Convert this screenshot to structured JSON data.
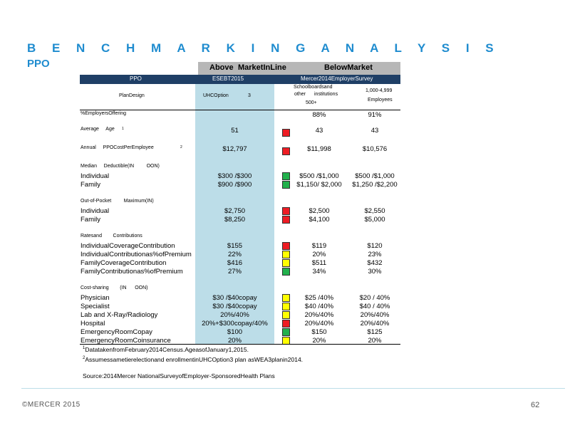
{
  "title": "B E N C H M A R K I N G   A N A L Y S I S",
  "subtitle": "PPO",
  "market_bar": {
    "above": "Above",
    "in_line": "MarketInLine",
    "below": "BelowMarket"
  },
  "table": {
    "header": {
      "col0": "PPO",
      "col1": "ESEBT2015",
      "col2": "Mercer2014EmployerSurvey"
    },
    "subheader": {
      "plan_design": "PlanDesign",
      "uhc": "UHCOption",
      "uhc_num": "3",
      "schools_1": "Schoolboardsand",
      "schools_2": "other",
      "schools_3": "institutions",
      "schools_4": "500+",
      "employers_1": "1,000-4,999",
      "employers_2": "Employees"
    },
    "rows": [
      {
        "label": "%EmployersOffering",
        "v1": "",
        "flag": "",
        "v2": "88%",
        "v3": "91%",
        "small": true
      },
      {
        "label": "Average     Age",
        "sup": "1",
        "v1": "51",
        "flag": "red",
        "v2": "43",
        "v3": "43",
        "small": true
      },
      {
        "label": "Annual     PPOCostPerEmployee",
        "sup": "2",
        "v1": "$12,797",
        "flag": "red",
        "v2": "$11,998",
        "v3": "$10,576",
        "small": true
      },
      {
        "label": "Median     Deductible(IN         OON)",
        "v1": "",
        "flag": "",
        "v2": "",
        "v3": "",
        "small": true
      },
      {
        "label": "Individual",
        "v1": "$300 /$300",
        "flag": "green",
        "v2": "$500 /$1,000",
        "v3": "$500 /$1,000"
      },
      {
        "label": "Family",
        "v1": "$900 /$900",
        "flag": "green",
        "v2": "$1,150/ $2,000",
        "v3": "$1,250 /$2,200"
      },
      {
        "label": "Out-of-Pocket         Maximum(IN)",
        "v1": "",
        "flag": "",
        "v2": "",
        "v3": "",
        "small": true
      },
      {
        "label": "Individual",
        "v1": "$2,750",
        "flag": "red",
        "v2": "$2,500",
        "v3": "$2,550"
      },
      {
        "label": "Family",
        "v1": "$8,250",
        "flag": "red",
        "v2": "$4,100",
        "v3": "$5,000"
      },
      {
        "label": "Ratesand        Contributions",
        "v1": "",
        "flag": "",
        "v2": "",
        "v3": "",
        "small": true
      },
      {
        "label": "IndividualCoverageContribution",
        "v1": "$155",
        "flag": "red",
        "v2": "$119",
        "v3": "$120"
      },
      {
        "label": "IndividualContributionas%ofPremium",
        "v1": "22%",
        "flag": "yellow",
        "v2": "20%",
        "v3": "23%"
      },
      {
        "label": "FamilyCoverageContribution",
        "v1": "$416",
        "flag": "yellow",
        "v2": "$511",
        "v3": "$432"
      },
      {
        "label": "FamilyContributionas%ofPremium",
        "v1": "27%",
        "flag": "green",
        "v2": "34%",
        "v3": "30%"
      },
      {
        "label": "Cost-sharing        (IN      OON)",
        "v1": "",
        "flag": "",
        "v2": "",
        "v3": "",
        "small": true
      },
      {
        "label": "Physician",
        "v1": "$30 /$40copay",
        "flag": "yellow",
        "v2": "$25 /40%",
        "v3": "$20 / 40%"
      },
      {
        "label": "Specialist",
        "v1": "$30 /$40copay",
        "flag": "yellow",
        "v2": "$40 /40%",
        "v3": "$40 / 40%"
      },
      {
        "label": "Lab and X-Ray/Radiology",
        "v1": "20%/40%",
        "flag": "yellow",
        "v2": "20%/40%",
        "v3": "20%/40%"
      },
      {
        "label": "Hospital",
        "v1": "20%+$300copay/40%",
        "flag": "red",
        "v2": "20%/40%",
        "v3": "20%/40%"
      },
      {
        "label": "EmergencyRoomCopay",
        "v1": "$100",
        "flag": "green",
        "v2": "$150",
        "v3": "$125"
      },
      {
        "label": "EmergencyRoomCoinsurance",
        "v1": "20%",
        "flag": "yellow",
        "v2": "20%",
        "v3": "20%"
      }
    ]
  },
  "flag_colors": {
    "red": "#ee1c24",
    "yellow": "#ffff00",
    "green": "#22b14c"
  },
  "footnotes": [
    {
      "sup": "1",
      "text": "DatatakenfromFebruary2014Census.AgeasofJanuary1,2015."
    },
    {
      "sup": "2",
      "text": "Assumessametierelectionand enrollmentinUHCOption3 plan asWEA3planin2014."
    }
  ],
  "source": "Source:2014Mercer NationalSurveyofEmployer-SponsoredHealth Plans",
  "footer": {
    "left": "©MERCER  2015",
    "page": "62"
  }
}
